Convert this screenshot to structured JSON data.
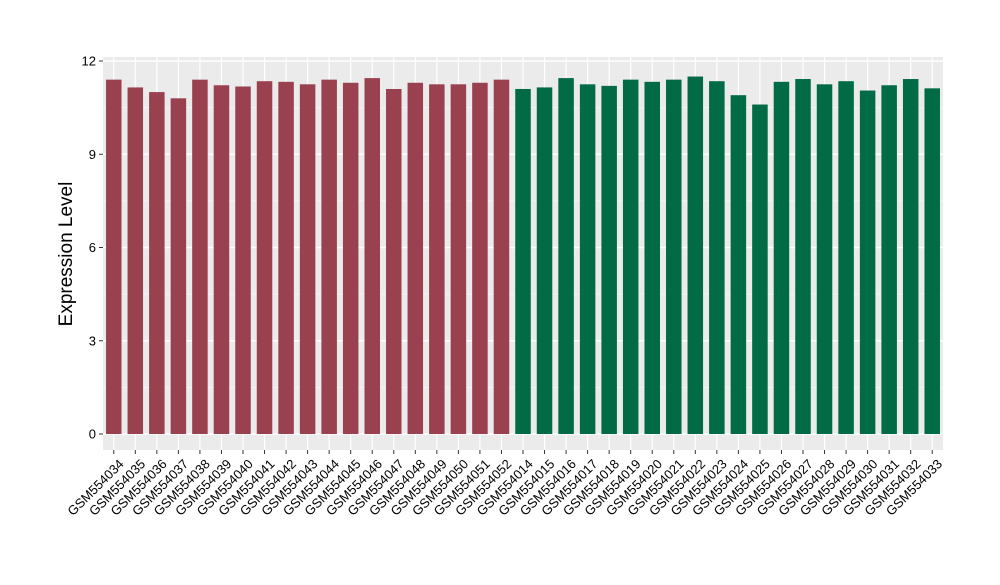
{
  "chart_data": {
    "type": "bar",
    "title": "",
    "xlabel": "",
    "ylabel": "Expression Level",
    "ylim": [
      0,
      12.5
    ],
    "yticks": [
      0,
      3,
      6,
      9,
      12
    ],
    "grid": true,
    "legend": "none",
    "colors": {
      "group_1": "#9a4150",
      "group_2": "#006b45",
      "panel_bg": "#ebebeb",
      "grid": "#ffffff"
    },
    "categories": [
      "GSM554034",
      "GSM554035",
      "GSM554036",
      "GSM554037",
      "GSM554038",
      "GSM554039",
      "GSM554040",
      "GSM554041",
      "GSM554042",
      "GSM554043",
      "GSM554044",
      "GSM554045",
      "GSM554046",
      "GSM554047",
      "GSM554048",
      "GSM554049",
      "GSM554050",
      "GSM554051",
      "GSM554052",
      "GSM554014",
      "GSM554015",
      "GSM554016",
      "GSM554017",
      "GSM554018",
      "GSM554019",
      "GSM554020",
      "GSM554021",
      "GSM554022",
      "GSM554023",
      "GSM554024",
      "GSM554025",
      "GSM554026",
      "GSM554027",
      "GSM554028",
      "GSM554029",
      "GSM554030",
      "GSM554031",
      "GSM554032",
      "GSM554033"
    ],
    "values": [
      11.4,
      11.15,
      11.0,
      10.8,
      11.4,
      11.22,
      11.18,
      11.35,
      11.33,
      11.25,
      11.4,
      11.3,
      11.45,
      11.1,
      11.3,
      11.25,
      11.25,
      11.3,
      11.4,
      11.1,
      11.15,
      11.45,
      11.25,
      11.2,
      11.4,
      11.33,
      11.4,
      11.5,
      11.35,
      10.9,
      10.6,
      11.33,
      11.42,
      11.25,
      11.35,
      11.05,
      11.22,
      11.42,
      11.12
    ],
    "groups": [
      1,
      1,
      1,
      1,
      1,
      1,
      1,
      1,
      1,
      1,
      1,
      1,
      1,
      1,
      1,
      1,
      1,
      1,
      1,
      2,
      2,
      2,
      2,
      2,
      2,
      2,
      2,
      2,
      2,
      2,
      2,
      2,
      2,
      2,
      2,
      2,
      2,
      2,
      2
    ]
  }
}
